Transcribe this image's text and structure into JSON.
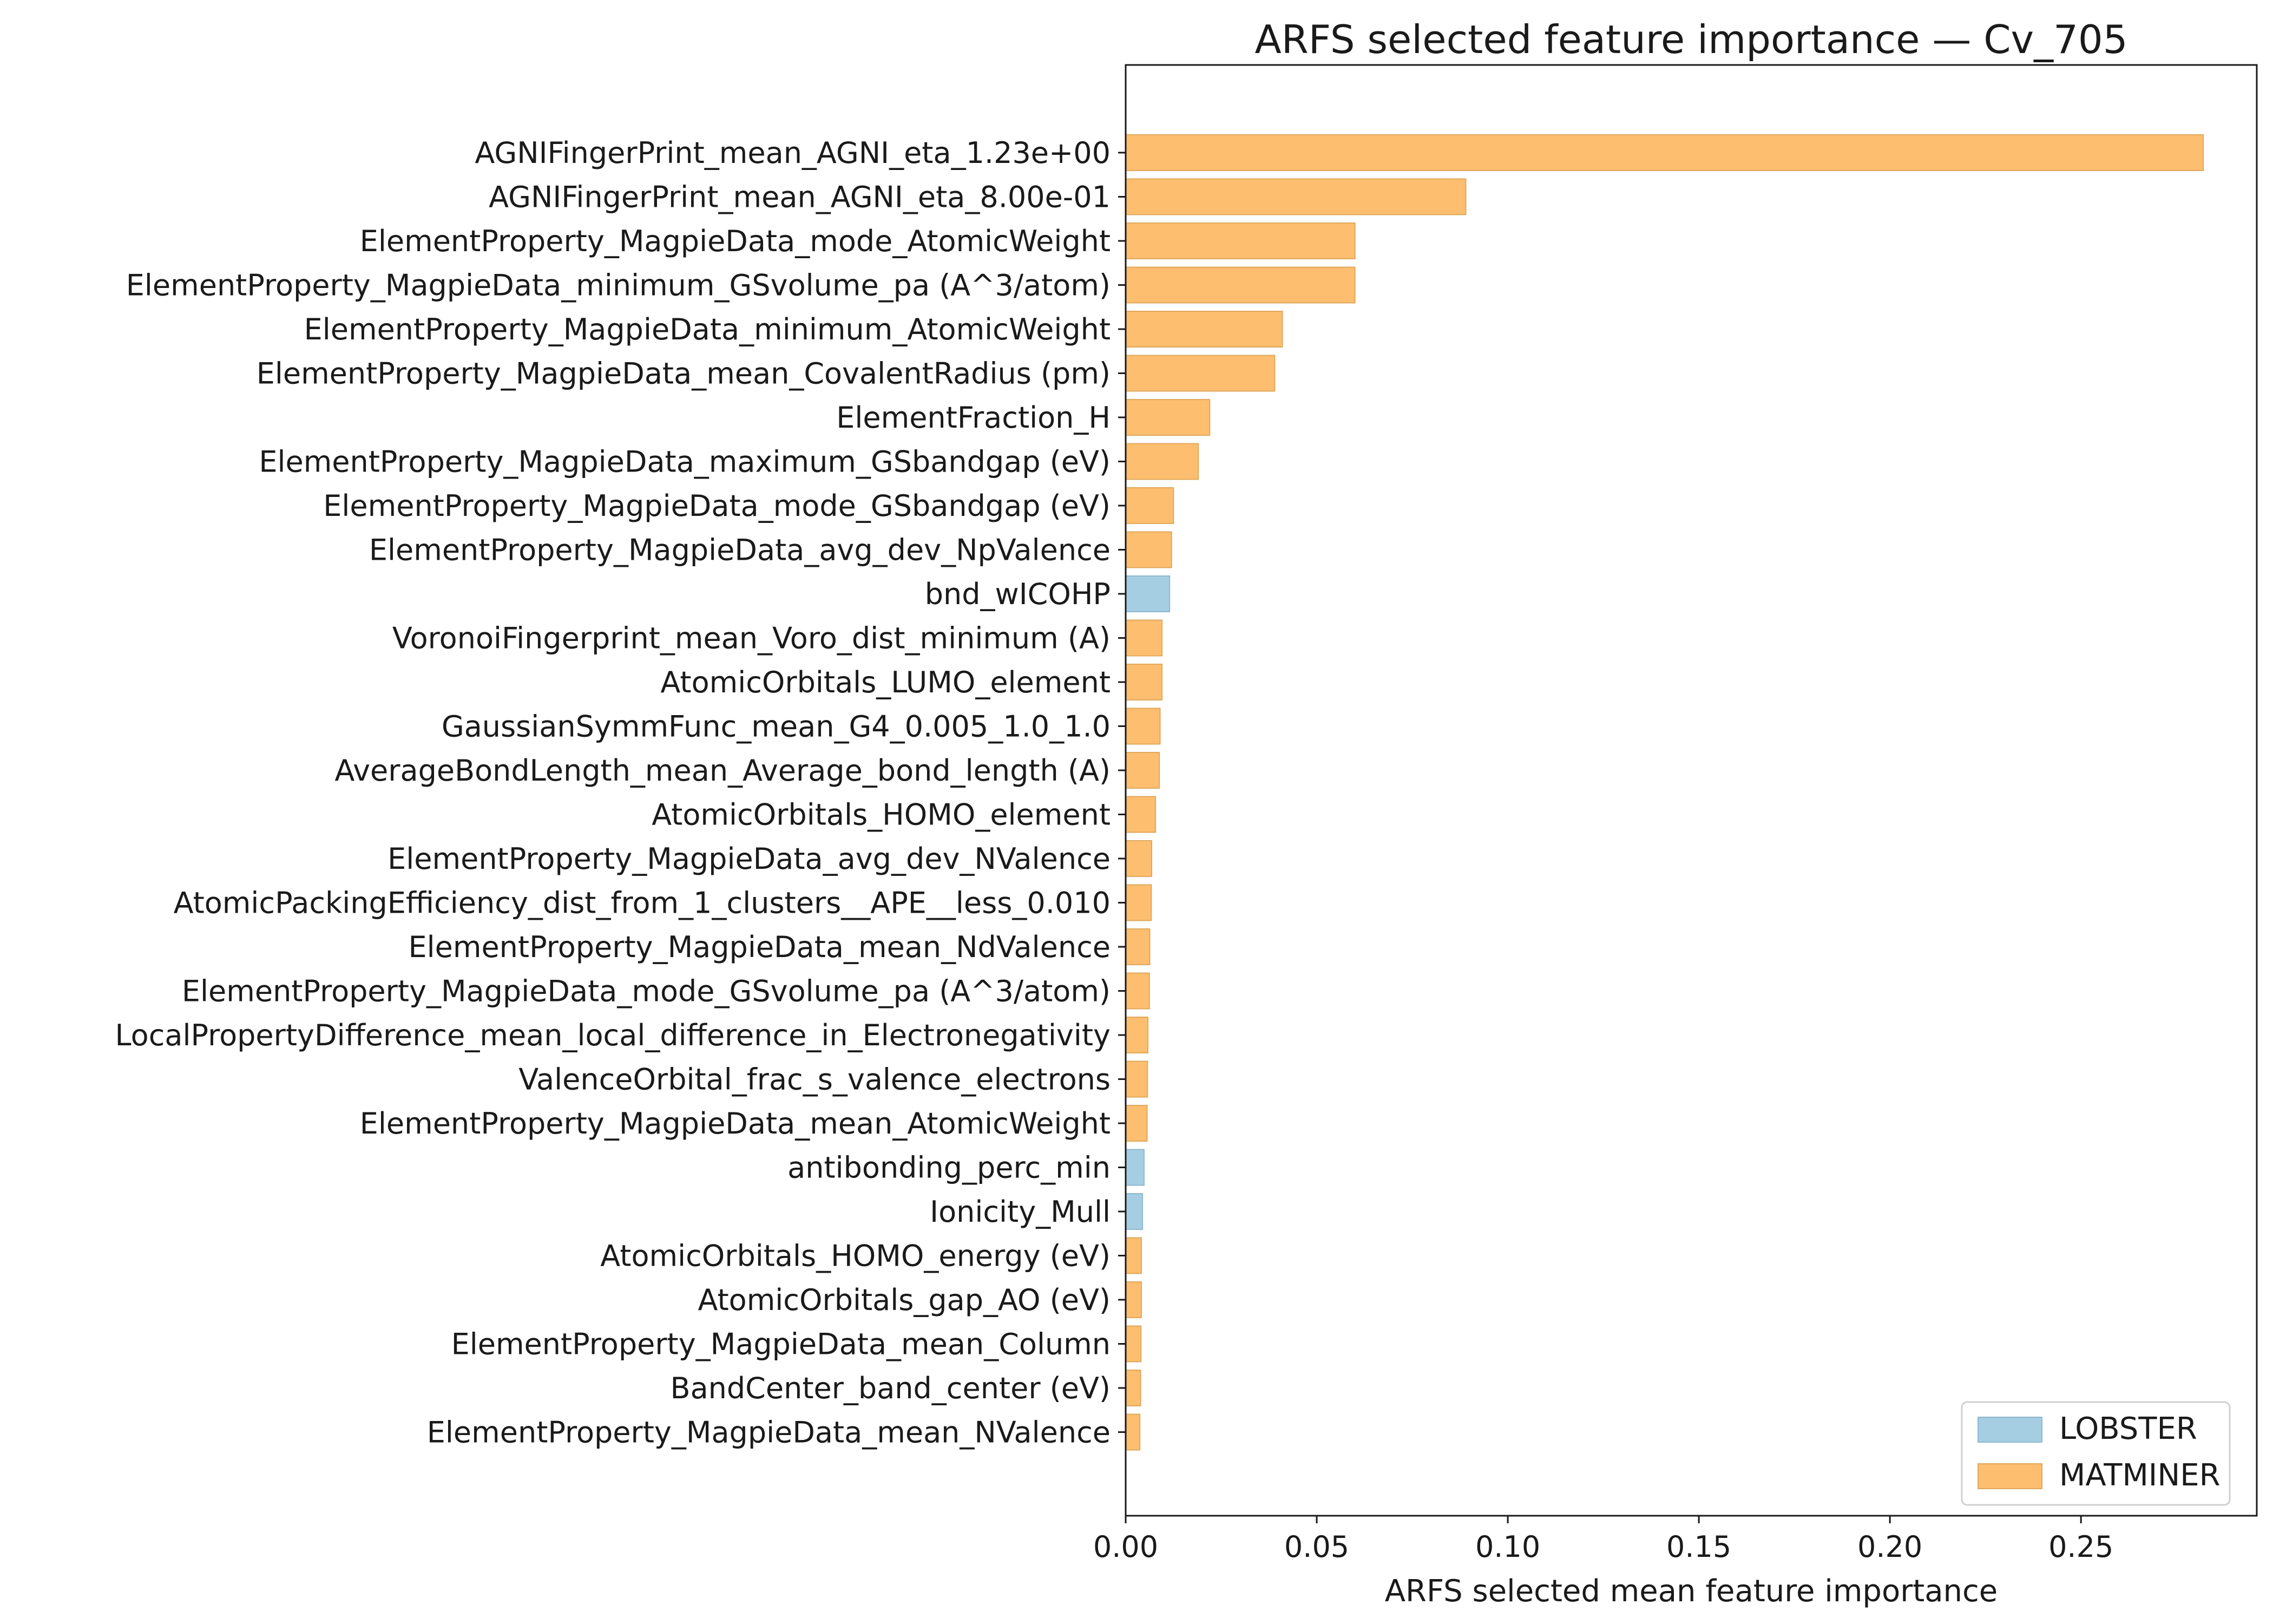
{
  "chart_data": {
    "type": "bar",
    "orientation": "horizontal",
    "title": "ARFS selected feature importance — Cv_705",
    "xlabel": "ARFS selected mean feature importance",
    "ylabel": "",
    "xlim": [
      0,
      0.296
    ],
    "xticks": [
      0.0,
      0.05,
      0.1,
      0.15,
      0.2,
      0.25
    ],
    "xtick_labels": [
      "0.00",
      "0.05",
      "0.10",
      "0.15",
      "0.20",
      "0.25"
    ],
    "grid": false,
    "legend_position": "bottom-right",
    "colors": {
      "LOBSTER": "#a6cee3",
      "MATMINER": "#fdbf6f"
    },
    "edge_colors": {
      "LOBSTER": "#8fb8cf",
      "MATMINER": "#e0a85c"
    },
    "legend": [
      {
        "label": "LOBSTER",
        "group": "LOBSTER"
      },
      {
        "label": "MATMINER",
        "group": "MATMINER"
      }
    ],
    "bars": [
      {
        "label": "AGNIFingerPrint_mean_AGNI_eta_1.23e+00",
        "value": 0.282,
        "group": "MATMINER"
      },
      {
        "label": "AGNIFingerPrint_mean_AGNI_eta_8.00e-01",
        "value": 0.089,
        "group": "MATMINER"
      },
      {
        "label": "ElementProperty_MagpieData_mode_AtomicWeight",
        "value": 0.06,
        "group": "MATMINER"
      },
      {
        "label": "ElementProperty_MagpieData_minimum_GSvolume_pa (A^3/atom)",
        "value": 0.06,
        "group": "MATMINER"
      },
      {
        "label": "ElementProperty_MagpieData_minimum_AtomicWeight",
        "value": 0.041,
        "group": "MATMINER"
      },
      {
        "label": "ElementProperty_MagpieData_mean_CovalentRadius (pm)",
        "value": 0.039,
        "group": "MATMINER"
      },
      {
        "label": "ElementFraction_H",
        "value": 0.022,
        "group": "MATMINER"
      },
      {
        "label": "ElementProperty_MagpieData_maximum_GSbandgap (eV)",
        "value": 0.019,
        "group": "MATMINER"
      },
      {
        "label": "ElementProperty_MagpieData_mode_GSbandgap (eV)",
        "value": 0.0125,
        "group": "MATMINER"
      },
      {
        "label": "ElementProperty_MagpieData_avg_dev_NpValence",
        "value": 0.012,
        "group": "MATMINER"
      },
      {
        "label": "bnd_wICOHP",
        "value": 0.0115,
        "group": "LOBSTER"
      },
      {
        "label": "VoronoiFingerprint_mean_Voro_dist_minimum (A)",
        "value": 0.0095,
        "group": "MATMINER"
      },
      {
        "label": "AtomicOrbitals_LUMO_element",
        "value": 0.0095,
        "group": "MATMINER"
      },
      {
        "label": "GaussianSymmFunc_mean_G4_0.005_1.0_1.0",
        "value": 0.009,
        "group": "MATMINER"
      },
      {
        "label": "AverageBondLength_mean_Average_bond_length (A)",
        "value": 0.0088,
        "group": "MATMINER"
      },
      {
        "label": "AtomicOrbitals_HOMO_element",
        "value": 0.0078,
        "group": "MATMINER"
      },
      {
        "label": "ElementProperty_MagpieData_avg_dev_NValence",
        "value": 0.0068,
        "group": "MATMINER"
      },
      {
        "label": "AtomicPackingEfficiency_dist_from_1_clusters__APE__less_0.010",
        "value": 0.0067,
        "group": "MATMINER"
      },
      {
        "label": "ElementProperty_MagpieData_mean_NdValence",
        "value": 0.0063,
        "group": "MATMINER"
      },
      {
        "label": "ElementProperty_MagpieData_mode_GSvolume_pa (A^3/atom)",
        "value": 0.0062,
        "group": "MATMINER"
      },
      {
        "label": "LocalPropertyDifference_mean_local_difference_in_Electronegativity",
        "value": 0.0058,
        "group": "MATMINER"
      },
      {
        "label": "ValenceOrbital_frac_s_valence_electrons",
        "value": 0.0057,
        "group": "MATMINER"
      },
      {
        "label": "ElementProperty_MagpieData_mean_AtomicWeight",
        "value": 0.0056,
        "group": "MATMINER"
      },
      {
        "label": "antibonding_perc_min",
        "value": 0.0048,
        "group": "LOBSTER"
      },
      {
        "label": "Ionicity_Mull",
        "value": 0.0044,
        "group": "LOBSTER"
      },
      {
        "label": "AtomicOrbitals_HOMO_energy (eV)",
        "value": 0.0041,
        "group": "MATMINER"
      },
      {
        "label": "AtomicOrbitals_gap_AO (eV)",
        "value": 0.0041,
        "group": "MATMINER"
      },
      {
        "label": "ElementProperty_MagpieData_mean_Column",
        "value": 0.004,
        "group": "MATMINER"
      },
      {
        "label": "BandCenter_band_center (eV)",
        "value": 0.0039,
        "group": "MATMINER"
      },
      {
        "label": "ElementProperty_MagpieData_mean_NValence",
        "value": 0.0037,
        "group": "MATMINER"
      }
    ]
  }
}
